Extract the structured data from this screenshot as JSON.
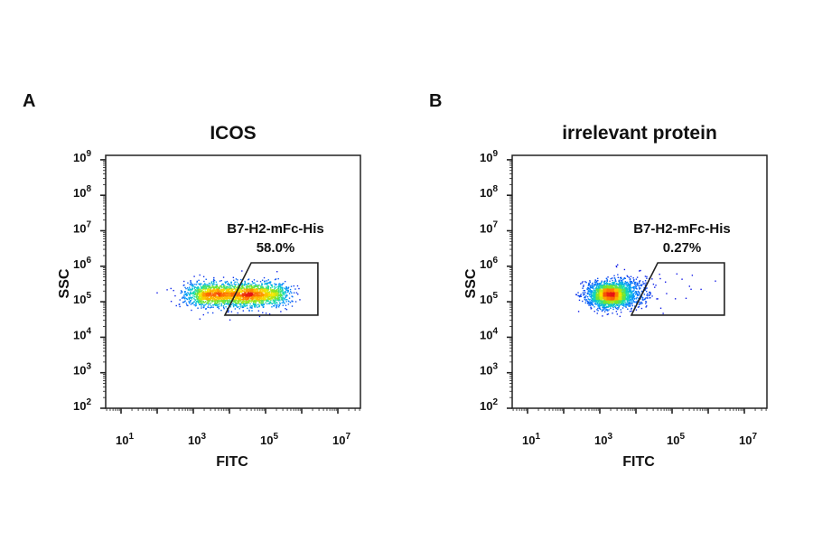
{
  "chart_data": [
    {
      "type": "scatter",
      "panel_label": "A",
      "title": "ICOS",
      "xlabel": "FITC",
      "ylabel": "SSC",
      "x_scale": "log",
      "y_scale": "log",
      "xlim": [
        3.8,
        40000000
      ],
      "ylim": [
        100,
        1200000000
      ],
      "x_tick_exponents": [
        1,
        3,
        5,
        7
      ],
      "y_tick_exponents": [
        2,
        3,
        4,
        5,
        6,
        7,
        8,
        9
      ],
      "grid": false,
      "gate": {
        "name": "B7-H2-mFc-His",
        "percent": "58.0%",
        "polygon": [
          [
            7500,
            42000
          ],
          [
            40000,
            1250000
          ],
          [
            2800000,
            1250000
          ],
          [
            2800000,
            42000
          ]
        ]
      },
      "populations": [
        {
          "x_log_range": [
            3.0,
            5.4
          ],
          "y_log_center": 5.2,
          "x_log_sd": 0.28,
          "y_log_sd": 0.17,
          "weight": 1.0
        }
      ],
      "coloring": "density (blue-low to red-high)"
    },
    {
      "type": "scatter",
      "panel_label": "B",
      "title": "irrelevant protein",
      "xlabel": "FITC",
      "ylabel": "SSC",
      "x_scale": "log",
      "y_scale": "log",
      "xlim": [
        3.8,
        40000000
      ],
      "ylim": [
        100,
        1200000000
      ],
      "x_tick_exponents": [
        1,
        3,
        5,
        7
      ],
      "y_tick_exponents": [
        2,
        3,
        4,
        5,
        6,
        7,
        8,
        9
      ],
      "grid": false,
      "gate": {
        "name": "B7-H2-mFc-His",
        "percent": "0.27%",
        "polygon": [
          [
            7500,
            42000
          ],
          [
            40000,
            1250000
          ],
          [
            2800000,
            1250000
          ],
          [
            2800000,
            42000
          ]
        ]
      },
      "populations": [
        {
          "x_log_range": [
            3.28,
            3.28
          ],
          "y_log_center": 5.2,
          "x_log_sd": 0.3,
          "y_log_sd": 0.17,
          "weight": 0.85
        },
        {
          "x_log_range": [
            3.6,
            4.1
          ],
          "y_log_center": 5.3,
          "x_log_sd": 0.3,
          "y_log_sd": 0.22,
          "weight": 0.15
        }
      ],
      "coloring": "density (blue-low to red-high)"
    }
  ]
}
